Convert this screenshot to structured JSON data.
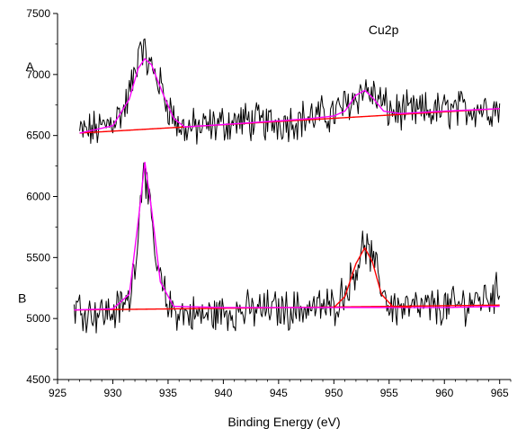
{
  "chart_data": {
    "type": "line",
    "title": "",
    "xlabel": "Binding Energy (eV)",
    "ylabel": "",
    "xlim": [
      925,
      966
    ],
    "ylim": [
      4500,
      7500
    ],
    "xticks": [
      925,
      930,
      935,
      940,
      945,
      950,
      955,
      960,
      965
    ],
    "yticks": [
      4500,
      5000,
      5500,
      6000,
      6500,
      7000,
      7500
    ],
    "grid": false,
    "legend": "none",
    "annotations": [
      {
        "text": "Cu2p",
        "x": 954.5,
        "y": 7330
      },
      {
        "text": "A",
        "x": 922.5,
        "y": 7030
      },
      {
        "text": "B",
        "x": 921.8,
        "y": 5130
      }
    ],
    "series": [
      {
        "role": "raw-data",
        "label": "A",
        "color": "#000000",
        "x_range": [
          927,
          965
        ],
        "points": [
          [
            927,
            6520
          ],
          [
            929,
            6560
          ],
          [
            931,
            6700
          ],
          [
            932,
            7000
          ],
          [
            932.5,
            7300
          ],
          [
            933,
            7120
          ],
          [
            934,
            6980
          ],
          [
            935,
            6750
          ],
          [
            936,
            6560
          ],
          [
            938,
            6560
          ],
          [
            940,
            6600
          ],
          [
            942,
            6620
          ],
          [
            944,
            6600
          ],
          [
            946,
            6620
          ],
          [
            948,
            6650
          ],
          [
            950,
            6680
          ],
          [
            951.5,
            6780
          ],
          [
            952.8,
            6880
          ],
          [
            954,
            6800
          ],
          [
            955,
            6700
          ],
          [
            957,
            6690
          ],
          [
            959,
            6700
          ],
          [
            961,
            6710
          ],
          [
            963,
            6730
          ],
          [
            965,
            6720
          ]
        ]
      },
      {
        "role": "fit-envelope",
        "label": "A",
        "color": "#ff00ff",
        "points": [
          [
            927,
            6520
          ],
          [
            930,
            6580
          ],
          [
            931.5,
            6800
          ],
          [
            932.3,
            7050
          ],
          [
            932.9,
            7130
          ],
          [
            933.5,
            7080
          ],
          [
            934.5,
            6850
          ],
          [
            935.5,
            6640
          ],
          [
            936.5,
            6570
          ],
          [
            940,
            6590
          ],
          [
            945,
            6620
          ],
          [
            948,
            6640
          ],
          [
            950,
            6660
          ],
          [
            951,
            6700
          ],
          [
            952,
            6830
          ],
          [
            952.8,
            6870
          ],
          [
            953.5,
            6810
          ],
          [
            954.5,
            6700
          ],
          [
            956,
            6680
          ],
          [
            960,
            6700
          ],
          [
            965,
            6720
          ]
        ]
      },
      {
        "role": "baseline",
        "label": "A",
        "color": "#ff0000",
        "points": [
          [
            927,
            6520
          ],
          [
            965,
            6720
          ]
        ]
      },
      {
        "role": "raw-data",
        "label": "B",
        "color": "#000000",
        "x_range": [
          926.5,
          965
        ],
        "points": [
          [
            926.5,
            5100
          ],
          [
            928,
            5050
          ],
          [
            930,
            5050
          ],
          [
            931.5,
            5150
          ],
          [
            932.3,
            5700
          ],
          [
            932.8,
            6340
          ],
          [
            933.3,
            5900
          ],
          [
            934,
            5400
          ],
          [
            935,
            5100
          ],
          [
            936,
            5050
          ],
          [
            938,
            5020
          ],
          [
            940,
            5050
          ],
          [
            942,
            5060
          ],
          [
            944,
            5080
          ],
          [
            946,
            5070
          ],
          [
            948,
            5090
          ],
          [
            950,
            5100
          ],
          [
            951.5,
            5300
          ],
          [
            952.8,
            5620
          ],
          [
            954,
            5350
          ],
          [
            955,
            5100
          ],
          [
            957,
            5080
          ],
          [
            959,
            5090
          ],
          [
            961,
            5100
          ],
          [
            963,
            5150
          ],
          [
            965,
            5220
          ]
        ]
      },
      {
        "role": "fit-envelope",
        "label": "B",
        "color": "#ff00ff",
        "points": [
          [
            926.5,
            5070
          ],
          [
            930,
            5080
          ],
          [
            931.5,
            5200
          ],
          [
            932.3,
            5800
          ],
          [
            932.9,
            6280
          ],
          [
            933.5,
            5900
          ],
          [
            934.3,
            5300
          ],
          [
            935.5,
            5100
          ],
          [
            940,
            5090
          ],
          [
            945,
            5090
          ],
          [
            950,
            5090
          ],
          [
            955,
            5090
          ],
          [
            960,
            5090
          ],
          [
            965,
            5100
          ]
        ]
      },
      {
        "role": "baseline",
        "label": "B",
        "color": "#ff0000",
        "points": [
          [
            926.5,
            5070
          ],
          [
            965,
            5110
          ]
        ]
      },
      {
        "role": "peak-fit",
        "label": "B",
        "color": "#ff0000",
        "points": [
          [
            950,
            5090
          ],
          [
            951,
            5180
          ],
          [
            952,
            5450
          ],
          [
            952.8,
            5580
          ],
          [
            953.5,
            5460
          ],
          [
            954.3,
            5200
          ],
          [
            955.3,
            5100
          ],
          [
            957,
            5095
          ]
        ]
      }
    ]
  }
}
